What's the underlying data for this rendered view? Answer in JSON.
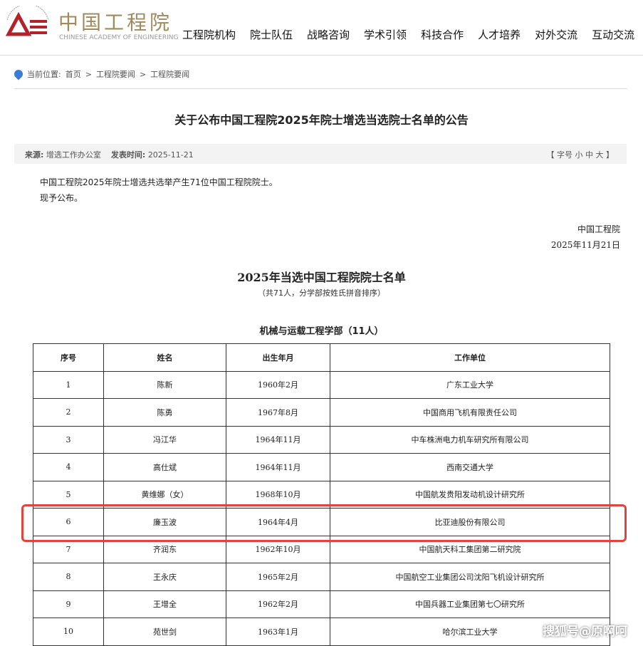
{
  "header": {
    "logo_cn": "中国工程院",
    "logo_en": "CHINESE ACADEMY OF ENGINEERING",
    "nav": [
      "工程院机构",
      "院士队伍",
      "战略咨询",
      "学术引领",
      "科技合作",
      "人才培养",
      "对外交流",
      "互动交流"
    ]
  },
  "breadcrumb": {
    "label": "当前位置:",
    "items": [
      "首页",
      "工程院要闻",
      "工程院要闻"
    ]
  },
  "article": {
    "title": "关于公布中国工程院2025年院士增选当选院士名单的公告",
    "source_label": "来源:",
    "source": "增选工作办公室",
    "date_label": "发表时间:",
    "date": "2025-11-21",
    "font_size": "【 字号  小 中 大 】",
    "para1": "中国工程院2025年院士增选共选举产生71位中国工程院院士。",
    "para2": "现予公布。",
    "signer": "中国工程院",
    "sign_date": "2025年11月21日",
    "list_title": "2025年当选中国工程院院士名单",
    "list_sub": "（共71人，分学部按姓氏拼音排序）",
    "dept": "机械与运载工程学部（11人）"
  },
  "table": {
    "headers": [
      "序号",
      "姓名",
      "出生年月",
      "工作单位"
    ],
    "rows": [
      [
        "1",
        "陈新",
        "1960年2月",
        "广东工业大学"
      ],
      [
        "2",
        "陈勇",
        "1967年8月",
        "中国商用飞机有限责任公司"
      ],
      [
        "3",
        "冯江华",
        "1964年11月",
        "中车株洲电力机车研究所有限公司"
      ],
      [
        "4",
        "高仕斌",
        "1964年11月",
        "西南交通大学"
      ],
      [
        "5",
        "黄维娜（女）",
        "1968年10月",
        "中国航发贵阳发动机设计研究所"
      ],
      [
        "6",
        "廉玉波",
        "1964年4月",
        "比亚迪股份有限公司"
      ],
      [
        "7",
        "齐润东",
        "1962年10月",
        "中国航天科工集团第二研究院"
      ],
      [
        "8",
        "王永庆",
        "1965年2月",
        "中国航空工业集团公司沈阳飞机设计研究所"
      ],
      [
        "9",
        "王增全",
        "1962年2月",
        "中国兵器工业集团第七〇研究所"
      ],
      [
        "10",
        "苑世剑",
        "1963年1月",
        "哈尔滨工业大学"
      ]
    ],
    "highlight_color": "#e0453c"
  },
  "watermark": "搜狐号@原啊呵"
}
